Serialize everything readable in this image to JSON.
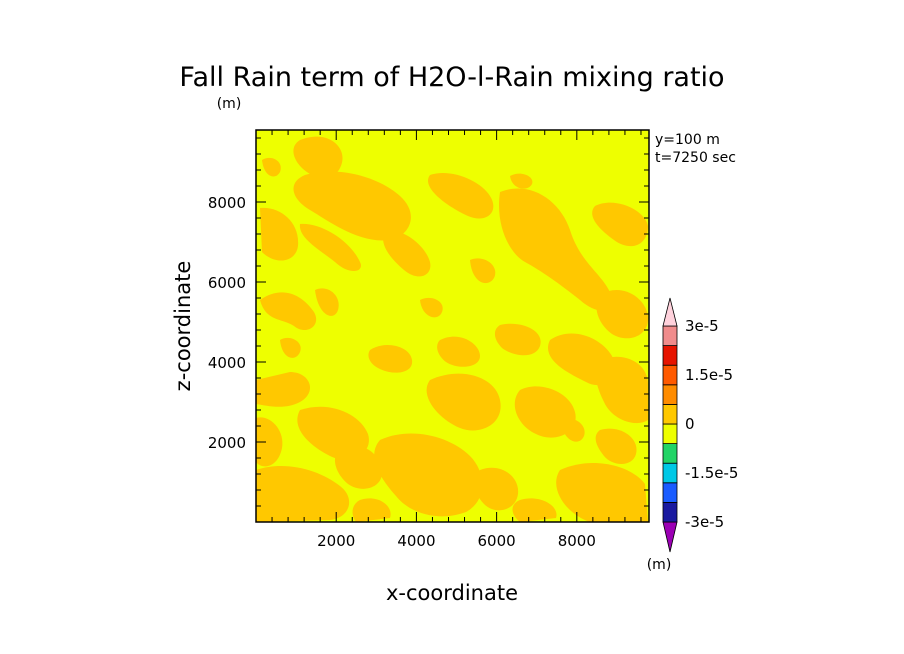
{
  "chart_data": {
    "type": "heatmap",
    "title": "Fall Rain term of H2O-l-Rain mixing ratio",
    "title_unit": "(m)",
    "xlabel": "x-coordinate",
    "ylabel": "z-coordinate",
    "annotations": [
      "y=100 m",
      "t=7250 sec"
    ],
    "xlim": [
      0,
      9800
    ],
    "ylim": [
      0,
      9800
    ],
    "xticks": [
      2000,
      4000,
      6000,
      8000
    ],
    "yticks": [
      2000,
      4000,
      6000,
      8000
    ],
    "xtick_labels": [
      "2000",
      "4000",
      "6000",
      "8000"
    ],
    "ytick_labels": [
      "2000",
      "4000",
      "6000",
      "8000"
    ],
    "field_levels": {
      "background": "#eeff00",
      "positive_small": "#ffc800"
    },
    "colorbar": {
      "unit": "(m)",
      "levels": [
        -3e-05,
        -2.25e-05,
        -1.5e-05,
        -7.5e-06,
        0,
        7.5e-06,
        1.5e-05,
        2.25e-05,
        3e-05
      ],
      "labels": [
        {
          "value": -3e-05,
          "text": "-3e-5"
        },
        {
          "value": -1.5e-05,
          "text": "-1.5e-5"
        },
        {
          "value": 0,
          "text": "0"
        },
        {
          "value": 1.5e-05,
          "text": "1.5e-5"
        },
        {
          "value": 3e-05,
          "text": "3e-5"
        }
      ],
      "colors": [
        "#9b00b4",
        "#1a1aa0",
        "#1a5cff",
        "#00c8e6",
        "#22d466",
        "#eeff00",
        "#ffc800",
        "#ff8c00",
        "#ff5a00",
        "#e61400",
        "#f08c8c",
        "#ffd2dc"
      ]
    },
    "grid": false
  }
}
